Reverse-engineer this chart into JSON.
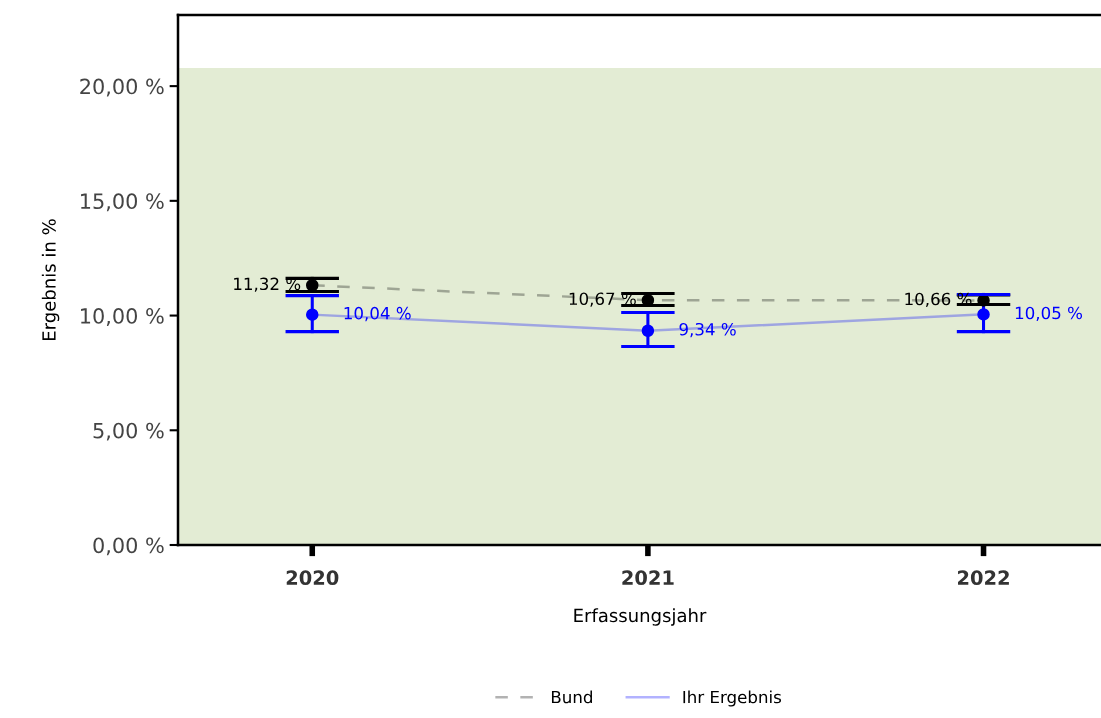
{
  "chart_data": {
    "type": "line",
    "xlabel": "Erfassungsjahr",
    "ylabel": "Ergebnis in %",
    "categories": [
      "2020",
      "2021",
      "2022"
    ],
    "series": [
      {
        "name": "Bund",
        "color": "#000000",
        "line_style": "dashed",
        "values": [
          11.32,
          10.67,
          10.66
        ],
        "errors": [
          [
            11.05,
            11.62
          ],
          [
            10.44,
            10.96
          ],
          [
            10.48,
            10.9
          ]
        ],
        "value_labels": [
          "11,32 %",
          "10,67 %",
          "10,66 %"
        ]
      },
      {
        "name": "Ihr Ergebnis",
        "color": "#0000ff",
        "line_style": "solid",
        "values": [
          10.04,
          9.34,
          10.05
        ],
        "errors": [
          [
            9.3,
            10.87
          ],
          [
            8.65,
            10.13
          ],
          [
            9.3,
            10.92
          ]
        ],
        "value_labels": [
          "10,04 %",
          "9,34 %",
          "10,05 %"
        ]
      }
    ],
    "ylim": [
      0,
      23.1
    ],
    "yticks": [
      {
        "value": 0,
        "label": "0,00 %"
      },
      {
        "value": 5,
        "label": "5,00 %"
      },
      {
        "value": 10,
        "label": "10,00 %"
      },
      {
        "value": 15,
        "label": "15,00 %"
      },
      {
        "value": 20,
        "label": "20,00 %"
      }
    ],
    "bands": [
      {
        "axis": "y",
        "from": 0,
        "to": 20.79,
        "color": "#e3ecd4"
      }
    ],
    "marker": "circle",
    "grid": false,
    "legend": "bottom"
  }
}
